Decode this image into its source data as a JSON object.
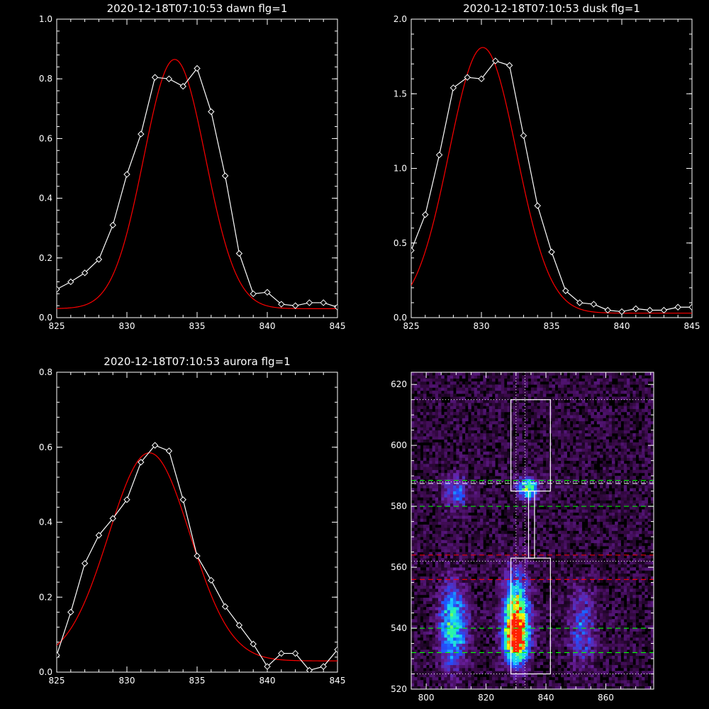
{
  "chart_data": [
    {
      "type": "line",
      "title": "2020-12-18T07:10:53 dawn flg=1",
      "xlim": [
        825,
        845
      ],
      "ylim": [
        0.0,
        1.0
      ],
      "xticks": [
        "825",
        "830",
        "835",
        "840",
        "845"
      ],
      "yticks": [
        "0.0",
        "0.2",
        "0.4",
        "0.6",
        "0.8",
        "1.0"
      ],
      "series": [
        {
          "color": "#ffffff",
          "marker": "diamond",
          "x": [
            825,
            826,
            827,
            828,
            829,
            830,
            831,
            832,
            833,
            834,
            835,
            836,
            837,
            838,
            839,
            840,
            841,
            842,
            843,
            844,
            845
          ],
          "y": [
            0.095,
            0.12,
            0.15,
            0.195,
            0.31,
            0.48,
            0.615,
            0.805,
            0.8,
            0.775,
            0.835,
            0.69,
            0.475,
            0.215,
            0.08,
            0.085,
            0.045,
            0.04,
            0.05,
            0.05,
            0.035
          ]
        },
        {
          "color": "#ff0000",
          "fit": "gaussian",
          "amplitude": 0.835,
          "center": 833.4,
          "sigma": 2.2,
          "baseline": 0.03
        }
      ]
    },
    {
      "type": "line",
      "title": "2020-12-18T07:10:53 dusk flg=1",
      "xlim": [
        825,
        845
      ],
      "ylim": [
        0.0,
        2.0
      ],
      "xticks": [
        "825",
        "830",
        "835",
        "840",
        "845"
      ],
      "yticks": [
        "0.0",
        "0.5",
        "1.0",
        "1.5",
        "2.0"
      ],
      "series": [
        {
          "color": "#ffffff",
          "marker": "diamond",
          "x": [
            825,
            826,
            827,
            828,
            829,
            830,
            831,
            832,
            833,
            834,
            835,
            836,
            837,
            838,
            839,
            840,
            841,
            842,
            843,
            844,
            845
          ],
          "y": [
            0.45,
            0.69,
            1.09,
            1.54,
            1.61,
            1.6,
            1.72,
            1.69,
            1.22,
            0.75,
            0.44,
            0.18,
            0.1,
            0.09,
            0.05,
            0.04,
            0.06,
            0.05,
            0.05,
            0.07,
            0.07
          ]
        },
        {
          "color": "#ff0000",
          "fit": "gaussian",
          "amplitude": 1.78,
          "center": 830.1,
          "sigma": 2.4,
          "baseline": 0.03
        }
      ]
    },
    {
      "type": "line",
      "title": "2020-12-18T07:10:53 aurora flg=1",
      "xlim": [
        825,
        845
      ],
      "ylim": [
        0.0,
        0.8
      ],
      "xticks": [
        "825",
        "830",
        "835",
        "840",
        "845"
      ],
      "yticks": [
        "0.0",
        "0.2",
        "0.4",
        "0.6",
        "0.8"
      ],
      "series": [
        {
          "color": "#ffffff",
          "marker": "diamond",
          "x": [
            825,
            826,
            827,
            828,
            829,
            830,
            831,
            832,
            833,
            834,
            835,
            836,
            837,
            838,
            839,
            840,
            841,
            842,
            843,
            844,
            845
          ],
          "y": [
            0.045,
            0.16,
            0.29,
            0.365,
            0.41,
            0.46,
            0.56,
            0.605,
            0.59,
            0.46,
            0.31,
            0.245,
            0.175,
            0.125,
            0.075,
            0.015,
            0.05,
            0.05,
            0.005,
            0.015,
            0.06
          ]
        },
        {
          "color": "#ff0000",
          "fit": "gaussian",
          "amplitude": 0.555,
          "center": 831.6,
          "sigma": 2.9,
          "baseline": 0.03
        }
      ]
    },
    {
      "type": "heatmap",
      "title": "",
      "xlim": [
        795,
        876
      ],
      "ylim": [
        520,
        624
      ],
      "xticks": [
        "800",
        "820",
        "840",
        "860"
      ],
      "yticks": [
        "520",
        "540",
        "560",
        "580",
        "600",
        "620"
      ],
      "colormap": [
        "#000000",
        "#3a0a4a",
        "#6a1fa0",
        "#2050ff",
        "#18d0ff",
        "#30ff90",
        "#ffff00",
        "#ff2000"
      ],
      "blobs": [
        {
          "x": 809,
          "y": 541,
          "sx": 3.2,
          "sy": 9,
          "amp": 0.55
        },
        {
          "x": 810,
          "y": 585,
          "sx": 3,
          "sy": 4,
          "amp": 0.3
        },
        {
          "x": 830,
          "y": 537,
          "sx": 2.8,
          "sy": 6,
          "amp": 0.95
        },
        {
          "x": 830,
          "y": 548,
          "sx": 3,
          "sy": 8,
          "amp": 0.55
        },
        {
          "x": 834,
          "y": 586,
          "sx": 2.5,
          "sy": 2.5,
          "amp": 0.6
        },
        {
          "x": 852,
          "y": 540,
          "sx": 3,
          "sy": 9,
          "amp": 0.3
        }
      ],
      "dotted_lines": {
        "y": [
          615,
          588,
          562,
          525
        ],
        "x": [
          830,
          833
        ]
      },
      "dashed_lines": [
        {
          "y": 588.5,
          "color": "#00ff00"
        },
        {
          "y": 587.5,
          "color": "#ffffff"
        },
        {
          "y": 580,
          "color": "#00ff00"
        },
        {
          "y": 564,
          "color": "#ff0000"
        },
        {
          "y": 556,
          "color": "#ff0000"
        },
        {
          "y": 540,
          "color": "#00ff00"
        },
        {
          "y": 532,
          "color": "#00ff00"
        }
      ],
      "boxes": [
        {
          "x0": 828.3,
          "x1": 841.5,
          "y0": 585,
          "y1": 615
        },
        {
          "x0": 828.3,
          "x1": 841.5,
          "y0": 525,
          "y1": 563
        },
        {
          "x0": 834.2,
          "x1": 836.2,
          "y0": 563,
          "y1": 585
        }
      ]
    }
  ]
}
